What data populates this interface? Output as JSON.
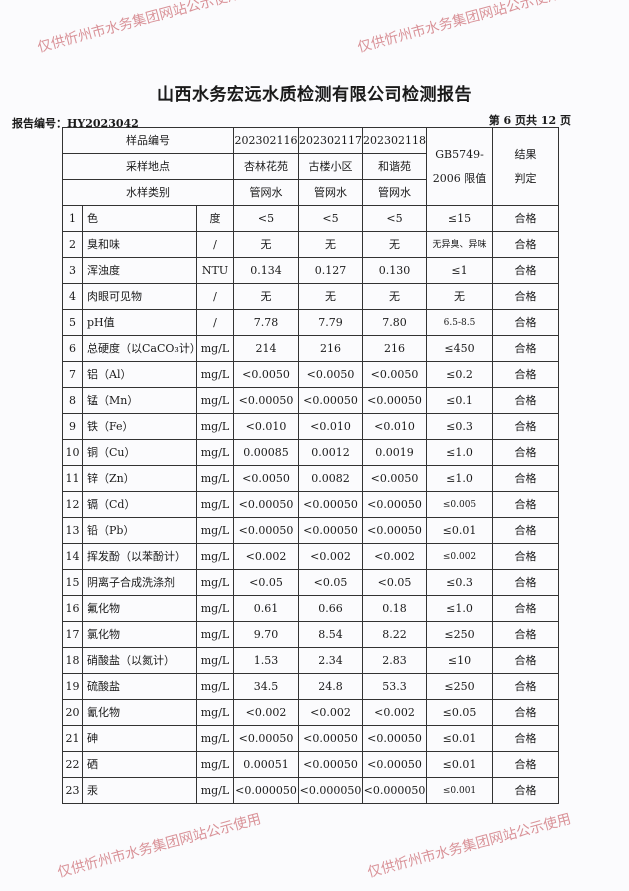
{
  "title": "山西水务宏远水质检测有限公司检测报告",
  "report_no": "报告编号：HY2023042",
  "page_info": "第 6 页共 12 页",
  "header": {
    "sample_no_label": "样品编号",
    "location_label": "采样地点",
    "type_label": "水样类别",
    "standard_label": "GB5749-2006 限值",
    "result_label": "结果判定",
    "samples": [
      {
        "no": "202302116",
        "location": "杏林花苑",
        "type": "管网水"
      },
      {
        "no": "202302117",
        "location": "古楼小区",
        "type": "管网水"
      },
      {
        "no": "202302118",
        "location": "和谐苑",
        "type": "管网水"
      }
    ]
  },
  "rows": [
    {
      "n": "1",
      "item": "色",
      "unit": "度",
      "v": [
        "<5",
        "<5",
        "<5"
      ],
      "limit": "≤15",
      "result": "合格"
    },
    {
      "n": "2",
      "item": "臭和味",
      "unit": "/",
      "v": [
        "无",
        "无",
        "无"
      ],
      "limit": "无异臭、异味",
      "result": "合格"
    },
    {
      "n": "3",
      "item": "浑浊度",
      "unit": "NTU",
      "v": [
        "0.134",
        "0.127",
        "0.130"
      ],
      "limit": "≤1",
      "result": "合格"
    },
    {
      "n": "4",
      "item": "肉眼可见物",
      "unit": "/",
      "v": [
        "无",
        "无",
        "无"
      ],
      "limit": "无",
      "result": "合格"
    },
    {
      "n": "5",
      "item": "pH值",
      "unit": "/",
      "v": [
        "7.78",
        "7.79",
        "7.80"
      ],
      "limit": "6.5-8.5",
      "result": "合格"
    },
    {
      "n": "6",
      "item": "总硬度（以CaCO₃计）",
      "unit": "mg/L",
      "v": [
        "214",
        "216",
        "216"
      ],
      "limit": "≤450",
      "result": "合格"
    },
    {
      "n": "7",
      "item": "铝（Al）",
      "unit": "mg/L",
      "v": [
        "<0.0050",
        "<0.0050",
        "<0.0050"
      ],
      "limit": "≤0.2",
      "result": "合格"
    },
    {
      "n": "8",
      "item": "锰（Mn）",
      "unit": "mg/L",
      "v": [
        "<0.00050",
        "<0.00050",
        "<0.00050"
      ],
      "limit": "≤0.1",
      "result": "合格"
    },
    {
      "n": "9",
      "item": "铁（Fe）",
      "unit": "mg/L",
      "v": [
        "<0.010",
        "<0.010",
        "<0.010"
      ],
      "limit": "≤0.3",
      "result": "合格"
    },
    {
      "n": "10",
      "item": "铜（Cu）",
      "unit": "mg/L",
      "v": [
        "0.00085",
        "0.0012",
        "0.0019"
      ],
      "limit": "≤1.0",
      "result": "合格"
    },
    {
      "n": "11",
      "item": "锌（Zn）",
      "unit": "mg/L",
      "v": [
        "<0.0050",
        "0.0082",
        "<0.0050"
      ],
      "limit": "≤1.0",
      "result": "合格"
    },
    {
      "n": "12",
      "item": "镉（Cd）",
      "unit": "mg/L",
      "v": [
        "<0.00050",
        "<0.00050",
        "<0.00050"
      ],
      "limit": "≤0.005",
      "result": "合格"
    },
    {
      "n": "13",
      "item": "铅（Pb）",
      "unit": "mg/L",
      "v": [
        "<0.00050",
        "<0.00050",
        "<0.00050"
      ],
      "limit": "≤0.01",
      "result": "合格"
    },
    {
      "n": "14",
      "item": "挥发酚（以苯酚计）",
      "unit": "mg/L",
      "v": [
        "<0.002",
        "<0.002",
        "<0.002"
      ],
      "limit": "≤0.002",
      "result": "合格"
    },
    {
      "n": "15",
      "item": "阴离子合成洗涤剂",
      "unit": "mg/L",
      "v": [
        "<0.05",
        "<0.05",
        "<0.05"
      ],
      "limit": "≤0.3",
      "result": "合格"
    },
    {
      "n": "16",
      "item": "氟化物",
      "unit": "mg/L",
      "v": [
        "0.61",
        "0.66",
        "0.18"
      ],
      "limit": "≤1.0",
      "result": "合格"
    },
    {
      "n": "17",
      "item": "氯化物",
      "unit": "mg/L",
      "v": [
        "9.70",
        "8.54",
        "8.22"
      ],
      "limit": "≤250",
      "result": "合格"
    },
    {
      "n": "18",
      "item": "硝酸盐（以氮计）",
      "unit": "mg/L",
      "v": [
        "1.53",
        "2.34",
        "2.83"
      ],
      "limit": "≤10",
      "result": "合格"
    },
    {
      "n": "19",
      "item": "硫酸盐",
      "unit": "mg/L",
      "v": [
        "34.5",
        "24.8",
        "53.3"
      ],
      "limit": "≤250",
      "result": "合格"
    },
    {
      "n": "20",
      "item": "氰化物",
      "unit": "mg/L",
      "v": [
        "<0.002",
        "<0.002",
        "<0.002"
      ],
      "limit": "≤0.05",
      "result": "合格"
    },
    {
      "n": "21",
      "item": "砷",
      "unit": "mg/L",
      "v": [
        "<0.00050",
        "<0.00050",
        "<0.00050"
      ],
      "limit": "≤0.01",
      "result": "合格"
    },
    {
      "n": "22",
      "item": "硒",
      "unit": "mg/L",
      "v": [
        "0.00051",
        "<0.00050",
        "<0.00050"
      ],
      "limit": "≤0.01",
      "result": "合格"
    },
    {
      "n": "23",
      "item": "汞",
      "unit": "mg/L",
      "v": [
        "<0.000050",
        "<0.000050",
        "<0.000050"
      ],
      "limit": "≤0.001",
      "result": "合格"
    }
  ],
  "watermark": "仅供忻州市水务集团网站公示使用",
  "colors": {
    "watermark": "#be3c46",
    "ink": "#1a1a1a"
  }
}
